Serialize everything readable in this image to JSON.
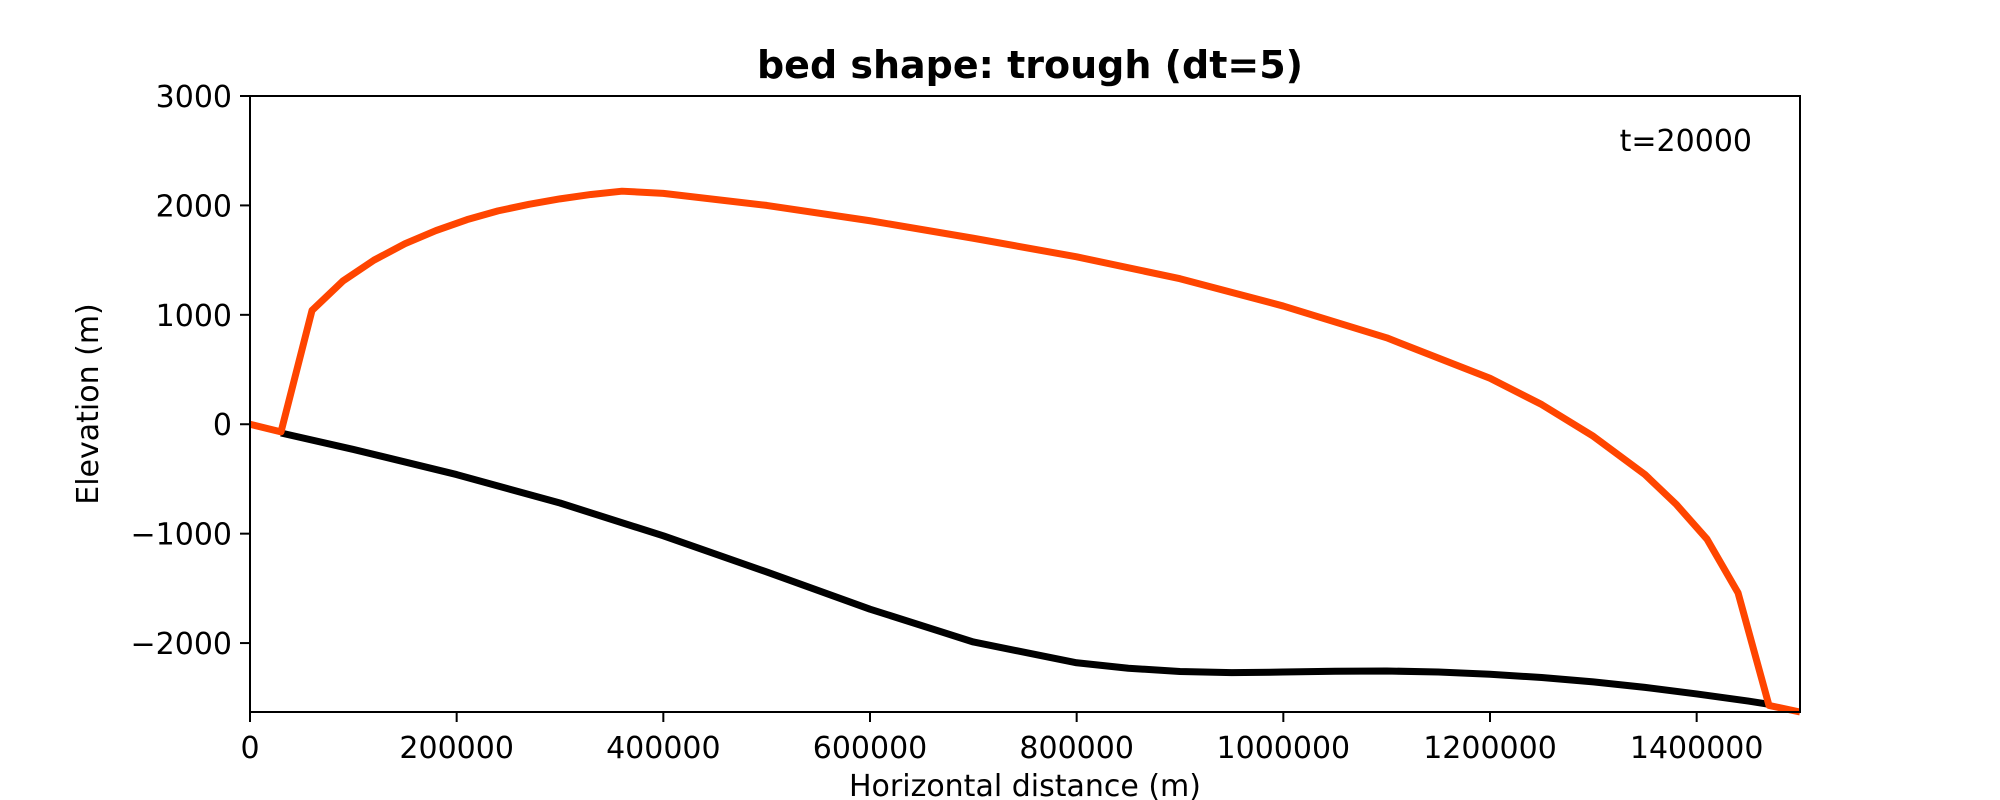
{
  "chart_data": {
    "type": "line",
    "title": "bed shape: trough (dt=5)",
    "xlabel": "Horizontal distance (m)",
    "ylabel": "Elevation (m)",
    "xlim": [
      0,
      1500000
    ],
    "ylim": [
      -2630,
      3000
    ],
    "x_ticks": [
      0,
      200000,
      400000,
      600000,
      800000,
      1000000,
      1200000,
      1400000
    ],
    "x_tick_labels": [
      "0",
      "200000",
      "400000",
      "600000",
      "800000",
      "1000000",
      "1200000",
      "1400000"
    ],
    "y_ticks": [
      3000,
      2000,
      1000,
      0,
      -1000,
      -2000
    ],
    "y_tick_labels": [
      "3000",
      "2000",
      "1000",
      "0",
      "−1000",
      "−2000"
    ],
    "grid": false,
    "annotation": "t=20000",
    "series": [
      {
        "color": "#000000",
        "x": [
          30000,
          100000,
          200000,
          300000,
          400000,
          500000,
          600000,
          700000,
          800000,
          850000,
          900000,
          950000,
          1000000,
          1050000,
          1100000,
          1150000,
          1200000,
          1250000,
          1300000,
          1350000,
          1400000,
          1450000,
          1470000
        ],
        "y": [
          -80,
          -230,
          -460,
          -720,
          -1020,
          -1350,
          -1690,
          -1990,
          -2180,
          -2230,
          -2260,
          -2270,
          -2265,
          -2258,
          -2255,
          -2265,
          -2285,
          -2315,
          -2355,
          -2405,
          -2465,
          -2530,
          -2560
        ]
      },
      {
        "color": "#ff4500",
        "x": [
          0,
          30000,
          60000,
          90000,
          120000,
          150000,
          180000,
          210000,
          240000,
          270000,
          300000,
          330000,
          360000,
          400000,
          500000,
          600000,
          700000,
          800000,
          900000,
          1000000,
          1100000,
          1200000,
          1250000,
          1300000,
          1350000,
          1380000,
          1410000,
          1440000,
          1470000,
          1500000
        ],
        "y": [
          0,
          -70,
          1040,
          1310,
          1500,
          1650,
          1770,
          1870,
          1950,
          2010,
          2060,
          2100,
          2130,
          2110,
          2000,
          1860,
          1700,
          1530,
          1330,
          1080,
          790,
          420,
          180,
          -110,
          -460,
          -730,
          -1050,
          -1540,
          -2570,
          -2630
        ]
      }
    ]
  }
}
